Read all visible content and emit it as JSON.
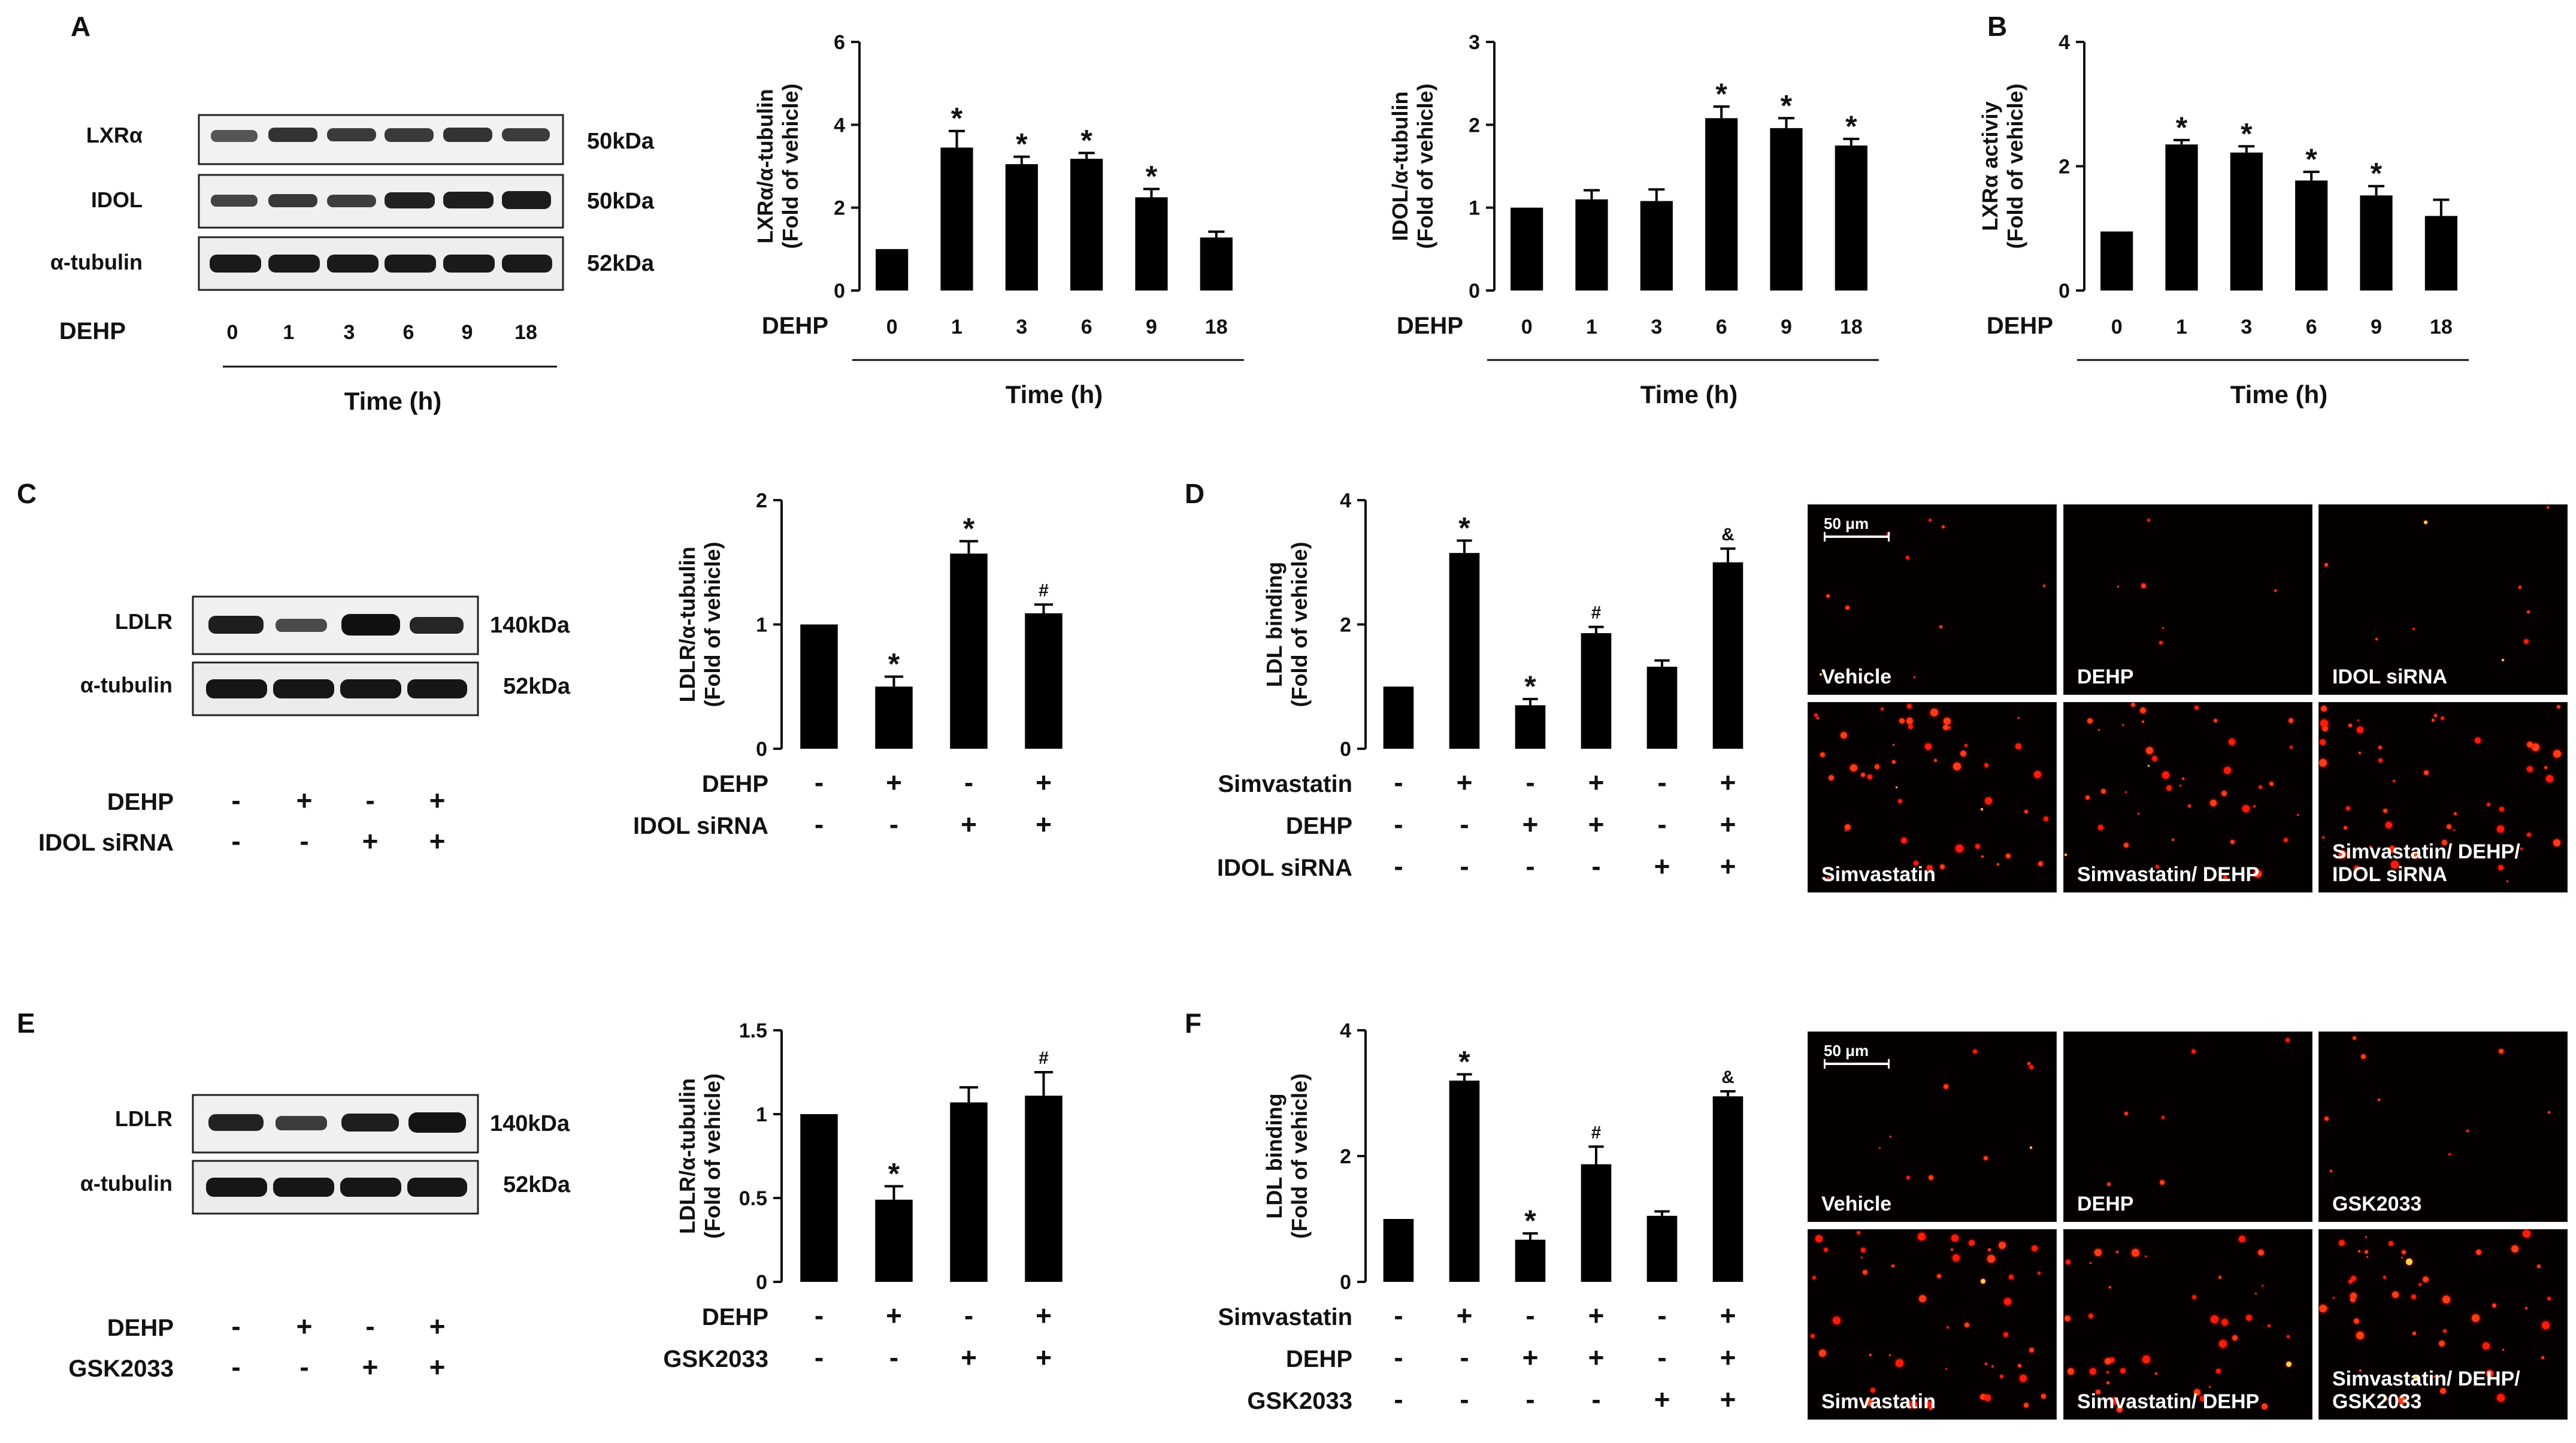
{
  "panel_letters": {
    "A": "A",
    "B": "B",
    "C": "C",
    "D": "D",
    "E": "E",
    "F": "F"
  },
  "colors": {
    "bar": "#000000",
    "axis": "#111111",
    "micro_bg": "#050000",
    "dot_a": "#ff1a0a",
    "dot_b": "#ff3b14",
    "dot_bright": "#ffd24a"
  },
  "blot_A": {
    "rows": [
      "LXRα",
      "IDOL",
      "α-tubulin"
    ],
    "sizes": [
      "50kDa",
      "50kDa",
      "52kDa"
    ],
    "treatment_label": "DEHP",
    "lanes": [
      "0",
      "1",
      "3",
      "6",
      "9",
      "18"
    ],
    "time_label": "Time (h)"
  },
  "blot_C": {
    "rows": [
      "LDLR",
      "α-tubulin"
    ],
    "sizes": [
      "140kDa",
      "52kDa"
    ],
    "conditions": [
      {
        "label": "DEHP",
        "signs": [
          "-",
          "+",
          "-",
          "+"
        ]
      },
      {
        "label": "IDOL siRNA",
        "signs": [
          "-",
          "-",
          "+",
          "+"
        ]
      }
    ]
  },
  "blot_E": {
    "rows": [
      "LDLR",
      "α-tubulin"
    ],
    "sizes": [
      "140kDa",
      "52kDa"
    ],
    "conditions": [
      {
        "label": "DEHP",
        "signs": [
          "-",
          "+",
          "-",
          "+"
        ]
      },
      {
        "label": "GSK2033",
        "signs": [
          "-",
          "-",
          "+",
          "+"
        ]
      }
    ]
  },
  "chart_data": [
    {
      "id": "A1",
      "type": "bar",
      "ylabel": [
        "LXRα/α-tubulin",
        "(Fold of vehicle)"
      ],
      "ylim": [
        0,
        6
      ],
      "ticks": [
        0,
        2,
        4,
        6
      ],
      "categories": [
        "0",
        "1",
        "3",
        "6",
        "9",
        "18"
      ],
      "values": [
        1.0,
        3.45,
        3.05,
        3.18,
        2.25,
        1.28
      ],
      "errors": [
        0,
        0.4,
        0.18,
        0.14,
        0.2,
        0.14
      ],
      "marks": [
        "",
        "*",
        "*",
        "*",
        "*",
        ""
      ],
      "xlabel": "Time (h)",
      "conditions": [
        {
          "label": "DEHP",
          "signs": [
            "0",
            "1",
            "3",
            "6",
            "9",
            "18"
          ]
        }
      ]
    },
    {
      "id": "A2",
      "type": "bar",
      "ylabel": [
        "IDOL/α-tubulin",
        "(Fold of vehicle)"
      ],
      "ylim": [
        0,
        3
      ],
      "ticks": [
        0,
        1,
        2,
        3
      ],
      "categories": [
        "0",
        "1",
        "3",
        "6",
        "9",
        "18"
      ],
      "values": [
        1.0,
        1.1,
        1.08,
        2.08,
        1.96,
        1.75
      ],
      "errors": [
        0,
        0.11,
        0.14,
        0.14,
        0.12,
        0.08
      ],
      "marks": [
        "",
        "",
        "",
        "*",
        "*",
        "*"
      ],
      "xlabel": "Time (h)",
      "conditions": [
        {
          "label": "DEHP",
          "signs": [
            "0",
            "1",
            "3",
            "6",
            "9",
            "18"
          ]
        }
      ]
    },
    {
      "id": "B",
      "type": "bar",
      "ylabel": [
        "LXRα activiy",
        "(Fold of vehicle)"
      ],
      "ylim": [
        0,
        4
      ],
      "ticks": [
        0,
        2,
        4
      ],
      "categories": [
        "0",
        "1",
        "3",
        "6",
        "9",
        "18"
      ],
      "values": [
        0.95,
        2.35,
        2.22,
        1.77,
        1.53,
        1.2
      ],
      "errors": [
        0,
        0.07,
        0.1,
        0.14,
        0.15,
        0.26
      ],
      "marks": [
        "",
        "*",
        "*",
        "*",
        "*",
        ""
      ],
      "xlabel": "Time (h)",
      "conditions": [
        {
          "label": "DEHP",
          "signs": [
            "0",
            "1",
            "3",
            "6",
            "9",
            "18"
          ]
        }
      ]
    },
    {
      "id": "C",
      "type": "bar",
      "ylabel": [
        "LDLR/α-tubulin",
        "(Fold of vehicle)"
      ],
      "ylim": [
        0,
        2
      ],
      "ticks": [
        0,
        1,
        2
      ],
      "categories": [
        "1",
        "2",
        "3",
        "4"
      ],
      "values": [
        1.0,
        0.5,
        1.57,
        1.09
      ],
      "errors": [
        0,
        0.08,
        0.1,
        0.07
      ],
      "marks": [
        "",
        "*",
        "*",
        "#"
      ],
      "xlabel": "",
      "conditions": [
        {
          "label": "DEHP",
          "signs": [
            "-",
            "+",
            "-",
            "+"
          ]
        },
        {
          "label": "IDOL siRNA",
          "signs": [
            "-",
            "-",
            "+",
            "+"
          ]
        }
      ]
    },
    {
      "id": "D",
      "type": "bar",
      "ylabel": [
        "LDL binding",
        "(Fold of vehicle)"
      ],
      "ylim": [
        0,
        4
      ],
      "ticks": [
        0,
        2,
        4
      ],
      "categories": [
        "1",
        "2",
        "3",
        "4",
        "5",
        "6"
      ],
      "values": [
        1.0,
        3.15,
        0.7,
        1.86,
        1.32,
        3.0
      ],
      "errors": [
        0,
        0.2,
        0.1,
        0.1,
        0.1,
        0.22
      ],
      "marks": [
        "",
        "*",
        "*",
        "#",
        "",
        "&"
      ],
      "xlabel": "",
      "conditions": [
        {
          "label": "Simvastatin",
          "signs": [
            "-",
            "+",
            "-",
            "+",
            "-",
            "+"
          ]
        },
        {
          "label": "DEHP",
          "signs": [
            "-",
            "-",
            "+",
            "+",
            "-",
            "+"
          ]
        },
        {
          "label": "IDOL siRNA",
          "signs": [
            "-",
            "-",
            "-",
            "-",
            "+",
            "+"
          ]
        }
      ]
    },
    {
      "id": "E",
      "type": "bar",
      "ylabel": [
        "LDLR/α-tubulin",
        "(Fold of vehicle)"
      ],
      "ylim": [
        0,
        1.5
      ],
      "ticks": [
        0,
        0.5,
        1,
        1.5
      ],
      "categories": [
        "1",
        "2",
        "3",
        "4"
      ],
      "values": [
        1.0,
        0.49,
        1.07,
        1.11
      ],
      "errors": [
        0,
        0.08,
        0.09,
        0.14
      ],
      "marks": [
        "",
        "*",
        "",
        "#"
      ],
      "xlabel": "",
      "conditions": [
        {
          "label": "DEHP",
          "signs": [
            "-",
            "+",
            "-",
            "+"
          ]
        },
        {
          "label": "GSK2033",
          "signs": [
            "-",
            "-",
            "+",
            "+"
          ]
        }
      ]
    },
    {
      "id": "F",
      "type": "bar",
      "ylabel": [
        "LDL binding",
        "(Fold of vehicle)"
      ],
      "ylim": [
        0,
        4
      ],
      "ticks": [
        0,
        2,
        4
      ],
      "categories": [
        "1",
        "2",
        "3",
        "4",
        "5",
        "6"
      ],
      "values": [
        1.0,
        3.2,
        0.67,
        1.87,
        1.05,
        2.95
      ],
      "errors": [
        0,
        0.1,
        0.1,
        0.28,
        0.07,
        0.08
      ],
      "marks": [
        "",
        "*",
        "*",
        "#",
        "",
        "&"
      ],
      "xlabel": "",
      "conditions": [
        {
          "label": "Simvastatin",
          "signs": [
            "-",
            "+",
            "-",
            "+",
            "-",
            "+"
          ]
        },
        {
          "label": "DEHP",
          "signs": [
            "-",
            "-",
            "+",
            "+",
            "-",
            "+"
          ]
        },
        {
          "label": "GSK2033",
          "signs": [
            "-",
            "-",
            "-",
            "-",
            "+",
            "+"
          ]
        }
      ]
    }
  ],
  "micrographs": {
    "scale_text": "50 μm",
    "D": [
      "Vehicle",
      "DEHP",
      "IDOL siRNA",
      "Simvastatin",
      "Simvastatin/ DEHP",
      "Simvastatin/ DEHP/\nIDOL siRNA"
    ],
    "F": [
      "Vehicle",
      "DEHP",
      "GSK2033",
      "Simvastatin",
      "Simvastatin/ DEHP",
      "Simvastatin/ DEHP/\nGSK2033"
    ],
    "density": [
      10,
      6,
      9,
      48,
      40,
      48
    ]
  }
}
